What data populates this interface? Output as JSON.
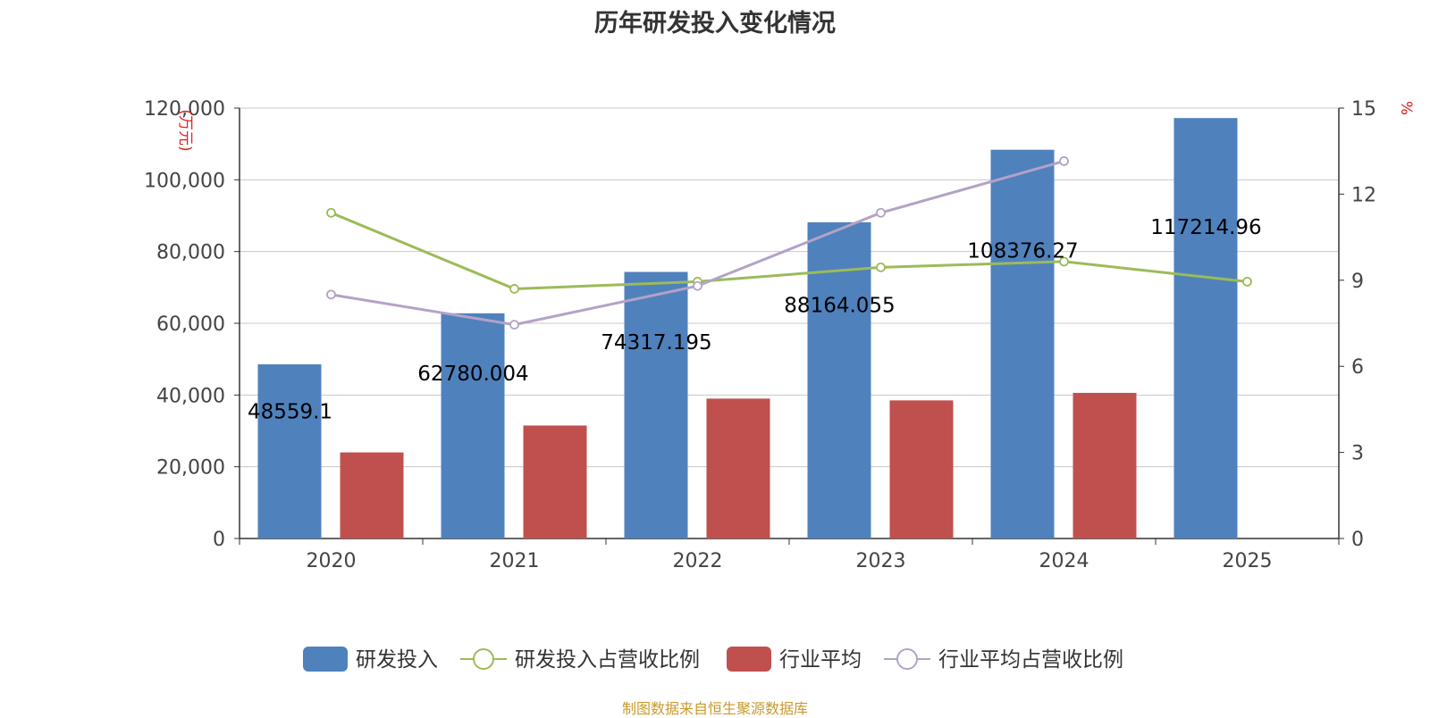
{
  "chart_data": {
    "type": "bar",
    "title": "历年研发投入变化情况",
    "source_note": "制图数据来自恒生聚源数据库",
    "categories": [
      "2020",
      "2021",
      "2022",
      "2023",
      "2024",
      "2025"
    ],
    "y_left": {
      "unit_label": "(万元)",
      "ylim": [
        0,
        120000
      ],
      "ticks": [
        0,
        20000,
        40000,
        60000,
        80000,
        100000,
        120000
      ],
      "tick_labels": [
        "0",
        "20,000",
        "40,000",
        "60,000",
        "80,000",
        "100,000",
        "120,000"
      ]
    },
    "y_right": {
      "unit_label": "%",
      "ylim": [
        0,
        15
      ],
      "ticks": [
        0,
        3,
        6,
        9,
        12,
        15
      ],
      "tick_labels": [
        "0",
        "3",
        "6",
        "9",
        "12",
        "15"
      ]
    },
    "grid": true,
    "legend_position": "bottom",
    "series": [
      {
        "name": "研发投入",
        "type": "bar",
        "axis": "left",
        "color": "#4f81bd",
        "values": [
          48559.1,
          62780.004,
          74317.195,
          88164.055,
          108376.27,
          117214.96
        ],
        "labels": [
          "48559.1",
          "62780.004",
          "74317.195",
          "88164.055",
          "108376.27",
          "117214.96"
        ]
      },
      {
        "name": "研发投入占营收比例",
        "type": "line",
        "axis": "right",
        "color": "#9bbb59",
        "values": [
          11.35,
          8.7,
          8.95,
          9.45,
          9.65,
          8.95
        ]
      },
      {
        "name": "行业平均",
        "type": "bar",
        "axis": "left",
        "color": "#c0504d",
        "values": [
          24000,
          31500,
          39000,
          38500,
          40600,
          null
        ]
      },
      {
        "name": "行业平均占营收比例",
        "type": "line",
        "axis": "right",
        "color": "#b3a2c7",
        "values": [
          8.5,
          7.45,
          8.8,
          11.35,
          13.15,
          null
        ]
      }
    ]
  }
}
